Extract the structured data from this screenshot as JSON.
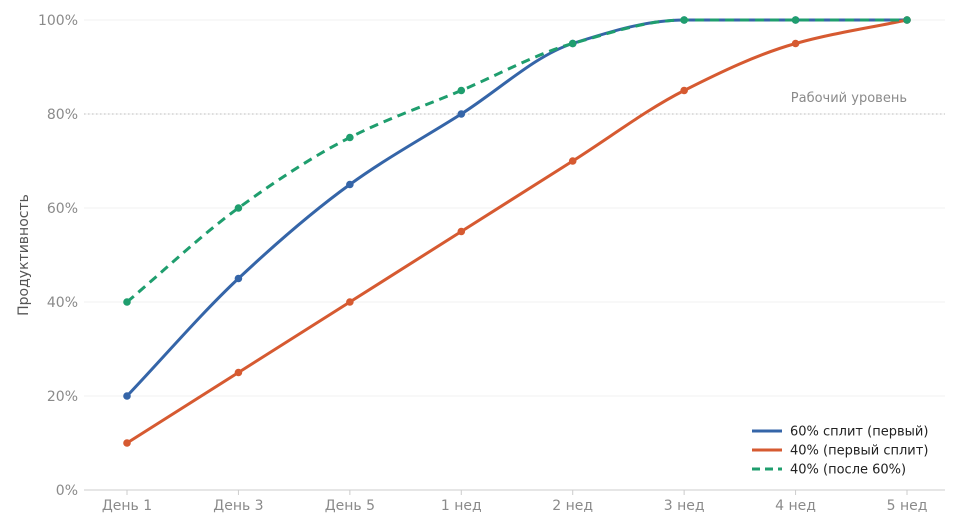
{
  "chart_data": {
    "type": "line",
    "categories": [
      "День 1",
      "День 3",
      "День 5",
      "1 нед",
      "2 нед",
      "3 нед",
      "4 нед",
      "5 нед"
    ],
    "ylabel": "Продуктивность",
    "ylim": [
      0,
      100
    ],
    "yticks": [
      0,
      20,
      40,
      60,
      80,
      100
    ],
    "ytick_suffix": "%",
    "grid": true,
    "reference_line": {
      "value": 80,
      "label": "Рабочий уровень"
    },
    "legend_position": "bottom-right",
    "series": [
      {
        "name": "60% сплит (первый)",
        "values": [
          20,
          45,
          65,
          80,
          95,
          100,
          100,
          100
        ],
        "color": "#3565a8",
        "dashed": false
      },
      {
        "name": "40% (первый сплит)",
        "values": [
          10,
          25,
          40,
          55,
          70,
          85,
          95,
          100
        ],
        "color": "#d65a31",
        "dashed": false
      },
      {
        "name": "40% (после 60%)",
        "values": [
          40,
          60,
          75,
          85,
          95,
          100,
          100,
          100
        ],
        "color": "#1f9e6e",
        "dashed": true
      }
    ]
  }
}
